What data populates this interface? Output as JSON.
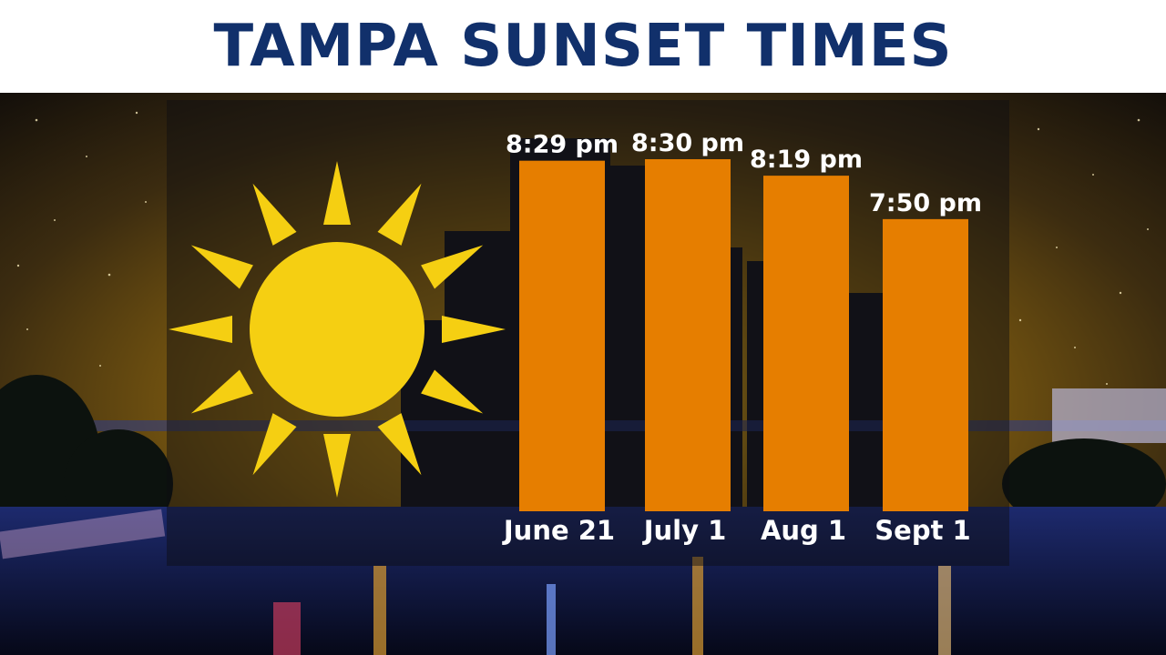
{
  "title": "TAMPA SUNSET TIMES",
  "colors": {
    "title": "#11306b",
    "bar": "#e67e00",
    "sun": "#f5cf12",
    "label": "#ffffff"
  },
  "decor": {
    "sun_icon": "sun-icon",
    "background": "city-skyline-night"
  },
  "chart_data": {
    "type": "bar",
    "title": "TAMPA SUNSET TIMES",
    "categories": [
      "June 21",
      "July 1",
      "Aug 1",
      "Sept 1"
    ],
    "values": [
      "20:29",
      "20:30",
      "20:19",
      "19:50"
    ],
    "data_labels": [
      "8:29 pm",
      "8:30 pm",
      "8:19 pm",
      "7:50 pm"
    ],
    "value_unit": "time of day",
    "ylim": [
      "16:35",
      "20:30"
    ],
    "grid": false,
    "xlabel": "",
    "ylabel": ""
  }
}
